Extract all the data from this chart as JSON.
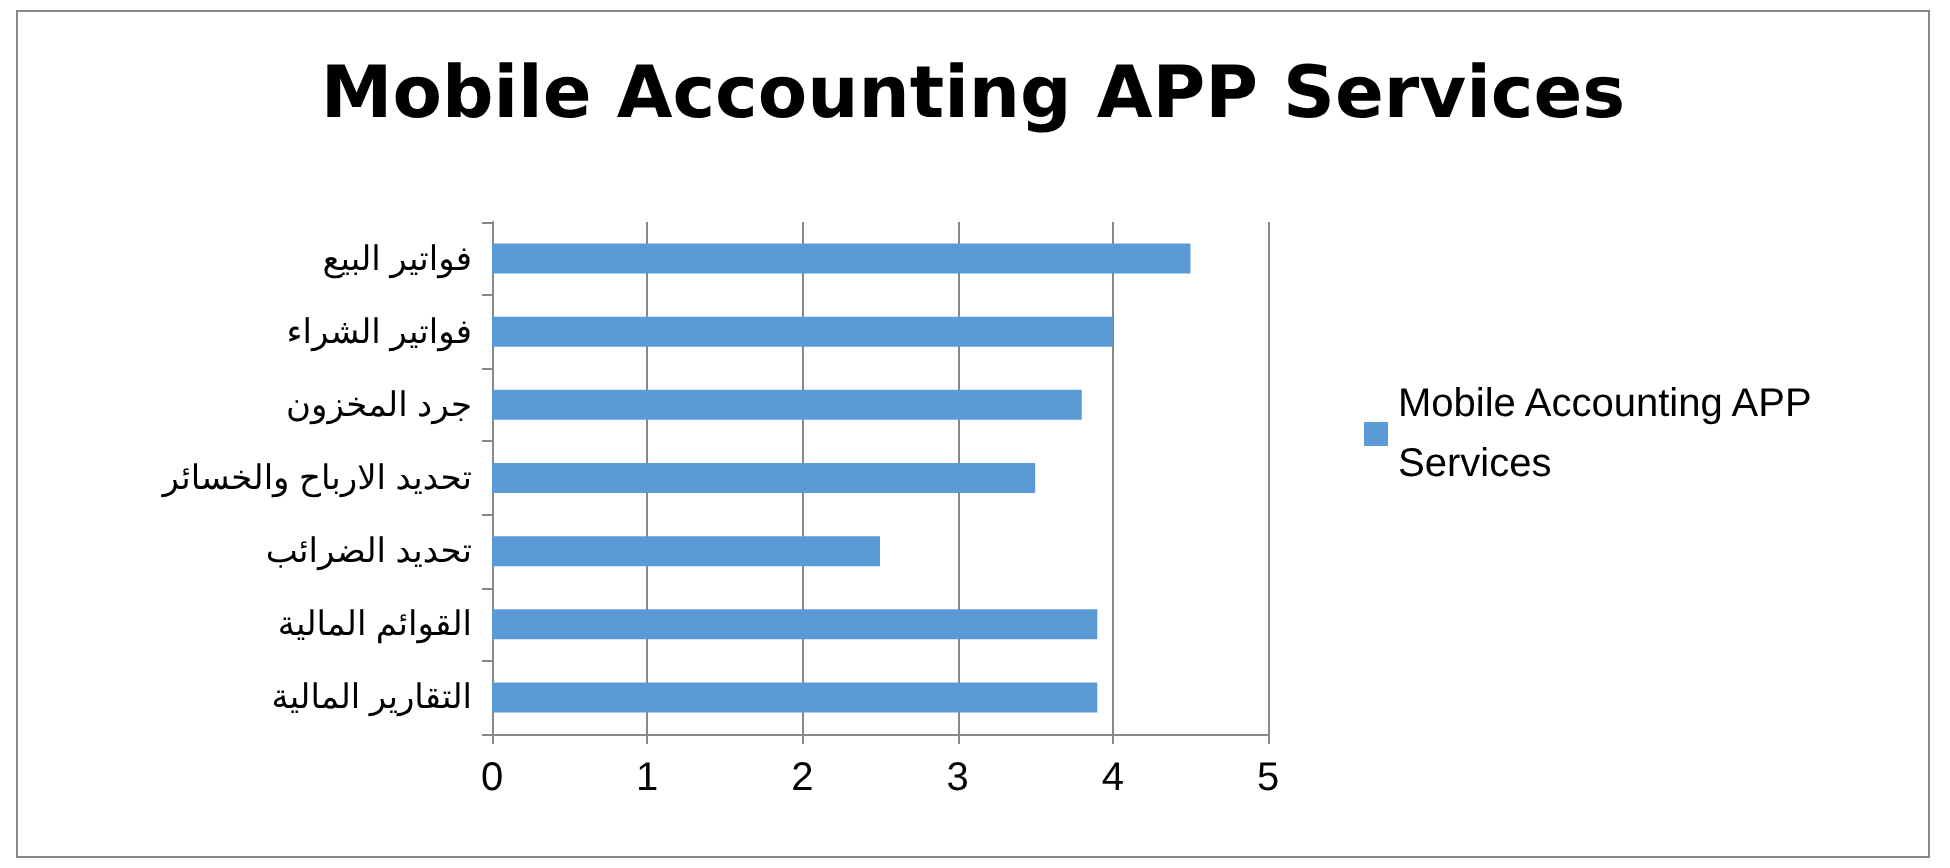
{
  "chart_data": {
    "type": "bar",
    "orientation": "horizontal",
    "title": "Mobile Accounting APP Services",
    "categories": [
      "فواتير البيع",
      "فواتير الشراء",
      "جرد المخزون",
      "تحديد الارباح والخسائر",
      "تحديد الضرائب",
      "القوائم المالية",
      "التقارير المالية"
    ],
    "series": [
      {
        "name": "Mobile Accounting APP Services",
        "color": "#5b9bd5",
        "values": [
          4.5,
          4,
          3.8,
          3.5,
          2.5,
          3.9,
          3.9
        ]
      }
    ],
    "xlim": [
      0,
      5
    ],
    "xticks": [
      0,
      1,
      2,
      3,
      4,
      5
    ],
    "grid": "x",
    "legend": "right"
  }
}
